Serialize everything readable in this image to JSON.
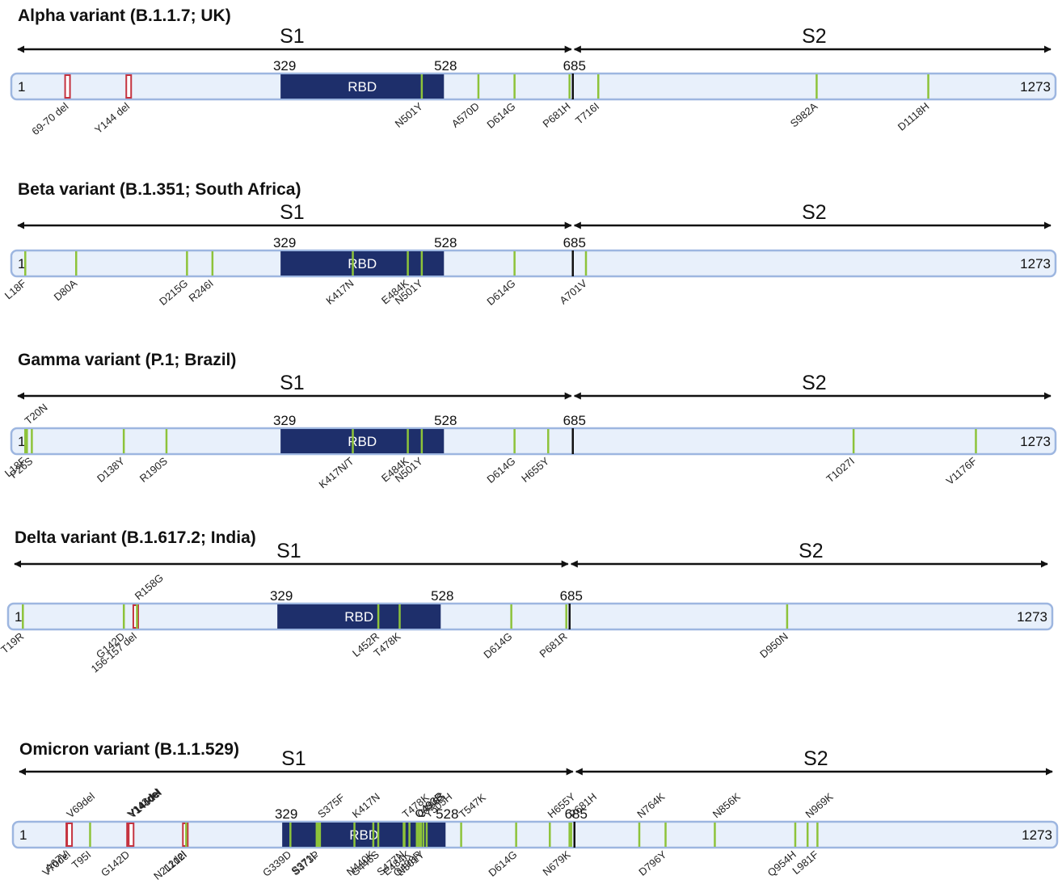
{
  "style": {
    "bar_fill": "#e8f0fb",
    "bar_stroke": "#9db6e0",
    "rbd_fill": "#1e2f6b",
    "sub_color": "#8dc33a",
    "del_color": "#c4323f",
    "cleavage_color": "#111111",
    "arrow_color": "#111111"
  },
  "protein": {
    "start": "1",
    "end": "1273",
    "rbd_start": "329",
    "rbd_end": "528",
    "cleavage": "685",
    "rbd_label": "RBD",
    "s1_label": "S1",
    "s2_label": "S2"
  },
  "variants": [
    {
      "title": "Alpha variant (B.1.1.7; UK)",
      "mutations": [
        {
          "label": "69-70 del",
          "pos": 69.5,
          "type": "deletion",
          "side": "below"
        },
        {
          "label": "Y144 del",
          "pos": 144,
          "type": "deletion",
          "side": "below"
        },
        {
          "label": "N501Y",
          "pos": 501,
          "type": "substitution",
          "side": "below"
        },
        {
          "label": "A570D",
          "pos": 570,
          "type": "substitution",
          "side": "below"
        },
        {
          "label": "D614G",
          "pos": 614,
          "type": "substitution",
          "side": "below"
        },
        {
          "label": "P681H",
          "pos": 681,
          "type": "substitution",
          "side": "below"
        },
        {
          "label": "T716I",
          "pos": 716,
          "type": "substitution",
          "side": "below"
        },
        {
          "label": "S982A",
          "pos": 982,
          "type": "substitution",
          "side": "below"
        },
        {
          "label": "D1118H",
          "pos": 1118,
          "type": "substitution",
          "side": "below"
        }
      ]
    },
    {
      "title": "Beta variant (B.1.351; South Africa)",
      "mutations": [
        {
          "label": "L18F",
          "pos": 18,
          "type": "substitution",
          "side": "below"
        },
        {
          "label": "D80A",
          "pos": 80,
          "type": "substitution",
          "side": "below"
        },
        {
          "label": "D215G",
          "pos": 215,
          "type": "substitution",
          "side": "below"
        },
        {
          "label": "R246I",
          "pos": 246,
          "type": "substitution",
          "side": "below"
        },
        {
          "label": "K417N",
          "pos": 417,
          "type": "substitution",
          "side": "below"
        },
        {
          "label": "E484K",
          "pos": 484,
          "type": "substitution",
          "side": "below"
        },
        {
          "label": "N501Y",
          "pos": 501,
          "type": "substitution",
          "side": "below"
        },
        {
          "label": "D614G",
          "pos": 614,
          "type": "substitution",
          "side": "below"
        },
        {
          "label": "A701V",
          "pos": 701,
          "type": "substitution",
          "side": "below"
        }
      ]
    },
    {
      "title": "Gamma variant (P.1; Brazil)",
      "mutations": [
        {
          "label": "L18F",
          "pos": 18,
          "type": "substitution",
          "side": "below"
        },
        {
          "label": "T20N",
          "pos": 20,
          "type": "substitution",
          "side": "above"
        },
        {
          "label": "P26S",
          "pos": 26,
          "type": "substitution",
          "side": "below"
        },
        {
          "label": "D138Y",
          "pos": 138,
          "type": "substitution",
          "side": "below"
        },
        {
          "label": "R190S",
          "pos": 190,
          "type": "substitution",
          "side": "below"
        },
        {
          "label": "K417N/T",
          "pos": 417,
          "type": "substitution",
          "side": "below"
        },
        {
          "label": "E484K",
          "pos": 484,
          "type": "substitution",
          "side": "below"
        },
        {
          "label": "N501Y",
          "pos": 501,
          "type": "substitution",
          "side": "below"
        },
        {
          "label": "D614G",
          "pos": 614,
          "type": "substitution",
          "side": "below"
        },
        {
          "label": "H655Y",
          "pos": 655,
          "type": "substitution",
          "side": "below"
        },
        {
          "label": "T1027I",
          "pos": 1027,
          "type": "substitution",
          "side": "below"
        },
        {
          "label": "V1176F",
          "pos": 1176,
          "type": "substitution",
          "side": "below"
        }
      ]
    },
    {
      "title": "Delta variant (B.1.617.2; India)",
      "mutations": [
        {
          "label": "T19R",
          "pos": 19,
          "type": "substitution",
          "side": "below"
        },
        {
          "label": "G142D",
          "pos": 142,
          "type": "substitution",
          "side": "below"
        },
        {
          "label": "156-157 del",
          "pos": 156.5,
          "type": "deletion",
          "side": "below"
        },
        {
          "label": "R158G",
          "pos": 158,
          "type": "substitution",
          "side": "above"
        },
        {
          "label": "L452R",
          "pos": 452,
          "type": "substitution",
          "side": "below"
        },
        {
          "label": "T478K",
          "pos": 478,
          "type": "substitution",
          "side": "below"
        },
        {
          "label": "D614G",
          "pos": 614,
          "type": "substitution",
          "side": "below"
        },
        {
          "label": "P681R",
          "pos": 681,
          "type": "substitution",
          "side": "below"
        },
        {
          "label": "D950N",
          "pos": 950,
          "type": "substitution",
          "side": "below"
        }
      ]
    },
    {
      "title": "Omicron variant (B.1.1.529)",
      "mutations": [
        {
          "label": "A67V",
          "pos": 67,
          "type": "substitution",
          "side": "below"
        },
        {
          "label": "V69del",
          "pos": 69,
          "type": "deletion",
          "side": "above"
        },
        {
          "label": "V70del",
          "pos": 70,
          "type": "deletion",
          "side": "below"
        },
        {
          "label": "T95I",
          "pos": 95,
          "type": "substitution",
          "side": "below"
        },
        {
          "label": "G142D",
          "pos": 142,
          "type": "substitution",
          "side": "below"
        },
        {
          "label": "V143del",
          "pos": 143,
          "type": "deletion",
          "side": "above"
        },
        {
          "label": "Y144del",
          "pos": 144,
          "type": "deletion",
          "side": "above"
        },
        {
          "label": "Y145del",
          "pos": 145,
          "type": "deletion",
          "side": "above"
        },
        {
          "label": "N211del",
          "pos": 211,
          "type": "deletion",
          "side": "below"
        },
        {
          "label": "L212I",
          "pos": 212,
          "type": "substitution",
          "side": "below"
        },
        {
          "label": "G339D",
          "pos": 339,
          "type": "substitution",
          "side": "below"
        },
        {
          "label": "S371L",
          "pos": 371,
          "type": "substitution",
          "side": "below"
        },
        {
          "label": "S373P",
          "pos": 373,
          "type": "substitution",
          "side": "below"
        },
        {
          "label": "S375F",
          "pos": 375,
          "type": "substitution",
          "side": "above"
        },
        {
          "label": "K417N",
          "pos": 417,
          "type": "substitution",
          "side": "above"
        },
        {
          "label": "N440K",
          "pos": 440,
          "type": "substitution",
          "side": "below"
        },
        {
          "label": "G446S",
          "pos": 446,
          "type": "substitution",
          "side": "below"
        },
        {
          "label": "S477N",
          "pos": 477,
          "type": "substitution",
          "side": "below"
        },
        {
          "label": "T478K",
          "pos": 478,
          "type": "substitution",
          "side": "above"
        },
        {
          "label": "E484K",
          "pos": 484,
          "type": "substitution",
          "side": "below"
        },
        {
          "label": "Q493R",
          "pos": 493,
          "type": "substitution",
          "side": "above"
        },
        {
          "label": "Q493R",
          "pos": 493.5,
          "type": "substitution",
          "side": "above"
        },
        {
          "label": "G496S",
          "pos": 496,
          "type": "substitution",
          "side": "above"
        },
        {
          "label": "Q498R",
          "pos": 498,
          "type": "substitution",
          "side": "below"
        },
        {
          "label": "N501Y",
          "pos": 501,
          "type": "substitution",
          "side": "below"
        },
        {
          "label": "Y505H",
          "pos": 505,
          "type": "substitution",
          "side": "above"
        },
        {
          "label": "T547K",
          "pos": 547,
          "type": "substitution",
          "side": "above"
        },
        {
          "label": "D614G",
          "pos": 614,
          "type": "substitution",
          "side": "below"
        },
        {
          "label": "H655Y",
          "pos": 655,
          "type": "substitution",
          "side": "above"
        },
        {
          "label": "N679K",
          "pos": 679,
          "type": "substitution",
          "side": "below"
        },
        {
          "label": "P681H",
          "pos": 681,
          "type": "substitution",
          "side": "above"
        },
        {
          "label": "N764K",
          "pos": 764,
          "type": "substitution",
          "side": "above"
        },
        {
          "label": "D796Y",
          "pos": 796,
          "type": "substitution",
          "side": "below"
        },
        {
          "label": "N856K",
          "pos": 856,
          "type": "substitution",
          "side": "above"
        },
        {
          "label": "Q954H",
          "pos": 954,
          "type": "substitution",
          "side": "below"
        },
        {
          "label": "N969K",
          "pos": 969,
          "type": "substitution",
          "side": "above"
        },
        {
          "label": "L981F",
          "pos": 981,
          "type": "substitution",
          "side": "below"
        }
      ]
    }
  ]
}
